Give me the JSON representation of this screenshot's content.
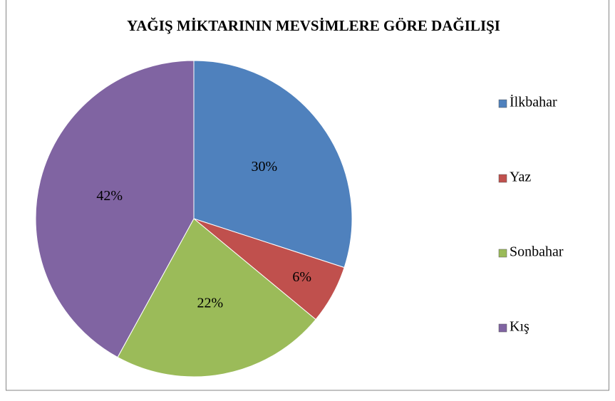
{
  "chart_data": {
    "type": "pie",
    "title": "YAĞIŞ MİKTARININ MEVSİMLERE GÖRE DAĞILIŞI",
    "categories": [
      "İlkbahar",
      "Yaz",
      "Sonbahar",
      "Kış"
    ],
    "values": [
      30,
      6,
      22,
      42
    ],
    "value_labels": [
      "30%",
      "6%",
      "22%",
      "42%"
    ],
    "colors": [
      "#4f81bd",
      "#c0504d",
      "#9bbb59",
      "#8064a2"
    ],
    "legend": "right"
  }
}
